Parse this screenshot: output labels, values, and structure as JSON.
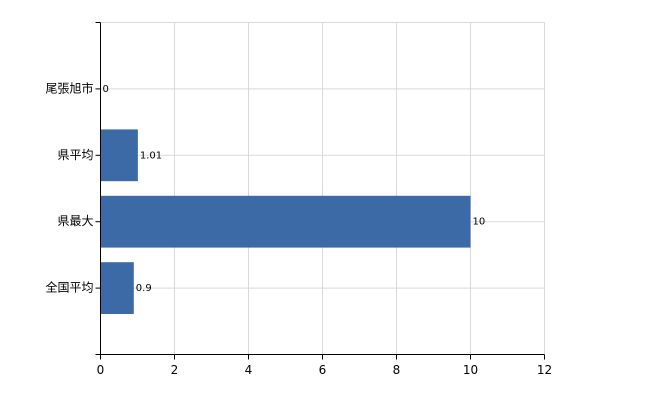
{
  "chart_data": {
    "type": "bar",
    "orientation": "horizontal",
    "categories": [
      "尾張旭市",
      "県平均",
      "県最大",
      "全国平均"
    ],
    "values": [
      0,
      1.01,
      10,
      0.9
    ],
    "color": "#3b6aa6",
    "xlim": [
      0,
      12
    ],
    "xticks": [
      0,
      2,
      4,
      6,
      8,
      10,
      12
    ],
    "grid": true
  }
}
